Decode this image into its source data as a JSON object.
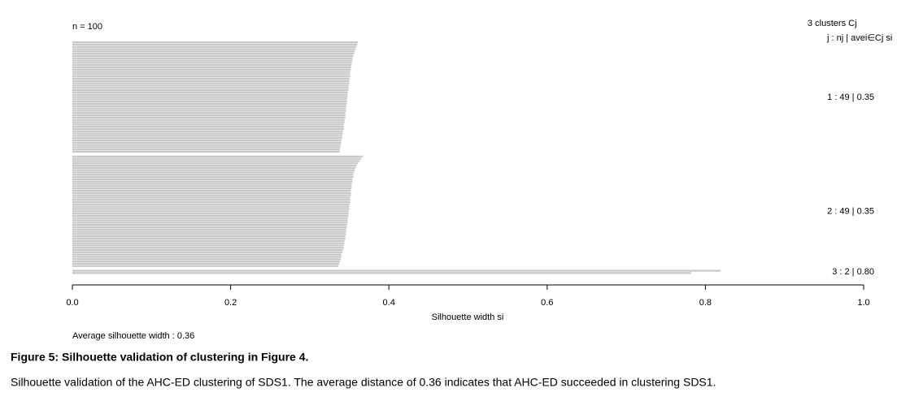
{
  "chart_data": {
    "type": "silhouette",
    "n_label": "n = 100",
    "legend_title": "3 clusters Cj",
    "legend_subtitle": "j : nj | avei∈Cj si",
    "x_label": "Silhouette width si",
    "average_label": "Average silhouette width :  0.36",
    "xlim": [
      0,
      1
    ],
    "xticks": [
      {
        "value": 0,
        "label": "0.0"
      },
      0.2,
      0.4,
      0.6,
      0.8,
      {
        "value": 1,
        "label": "1.0"
      }
    ],
    "color": "#c8c8c8",
    "series": [
      {
        "label": "1 :  49  |  0.35",
        "values": [
          0.361,
          0.36,
          0.359,
          0.358,
          0.357,
          0.356,
          0.355,
          0.354,
          0.354,
          0.353,
          0.353,
          0.352,
          0.352,
          0.351,
          0.351,
          0.351,
          0.35,
          0.35,
          0.35,
          0.349,
          0.349,
          0.349,
          0.348,
          0.348,
          0.348,
          0.347,
          0.347,
          0.347,
          0.346,
          0.346,
          0.346,
          0.345,
          0.345,
          0.345,
          0.344,
          0.344,
          0.343,
          0.343,
          0.343,
          0.342,
          0.342,
          0.341,
          0.341,
          0.34,
          0.34,
          0.339,
          0.339,
          0.338,
          0.338
        ]
      },
      {
        "label": "2 :  49  |  0.35",
        "values": [
          0.367,
          0.365,
          0.363,
          0.361,
          0.359,
          0.358,
          0.357,
          0.356,
          0.355,
          0.355,
          0.354,
          0.354,
          0.353,
          0.353,
          0.353,
          0.352,
          0.352,
          0.352,
          0.351,
          0.351,
          0.351,
          0.35,
          0.35,
          0.35,
          0.349,
          0.349,
          0.349,
          0.348,
          0.348,
          0.348,
          0.347,
          0.347,
          0.346,
          0.346,
          0.346,
          0.345,
          0.345,
          0.344,
          0.344,
          0.343,
          0.343,
          0.342,
          0.341,
          0.34,
          0.34,
          0.339,
          0.338,
          0.337,
          0.336
        ]
      },
      {
        "label": "3 :  2  |  0.80",
        "values": [
          0.819,
          0.782
        ]
      }
    ]
  },
  "caption": {
    "title": "Figure 5: Silhouette validation of clustering in Figure 4.",
    "text": "Silhouette validation of the AHC-ED clustering of SDS1. The average distance of 0.36 indicates that AHC-ED succeeded in clustering SDS1."
  }
}
